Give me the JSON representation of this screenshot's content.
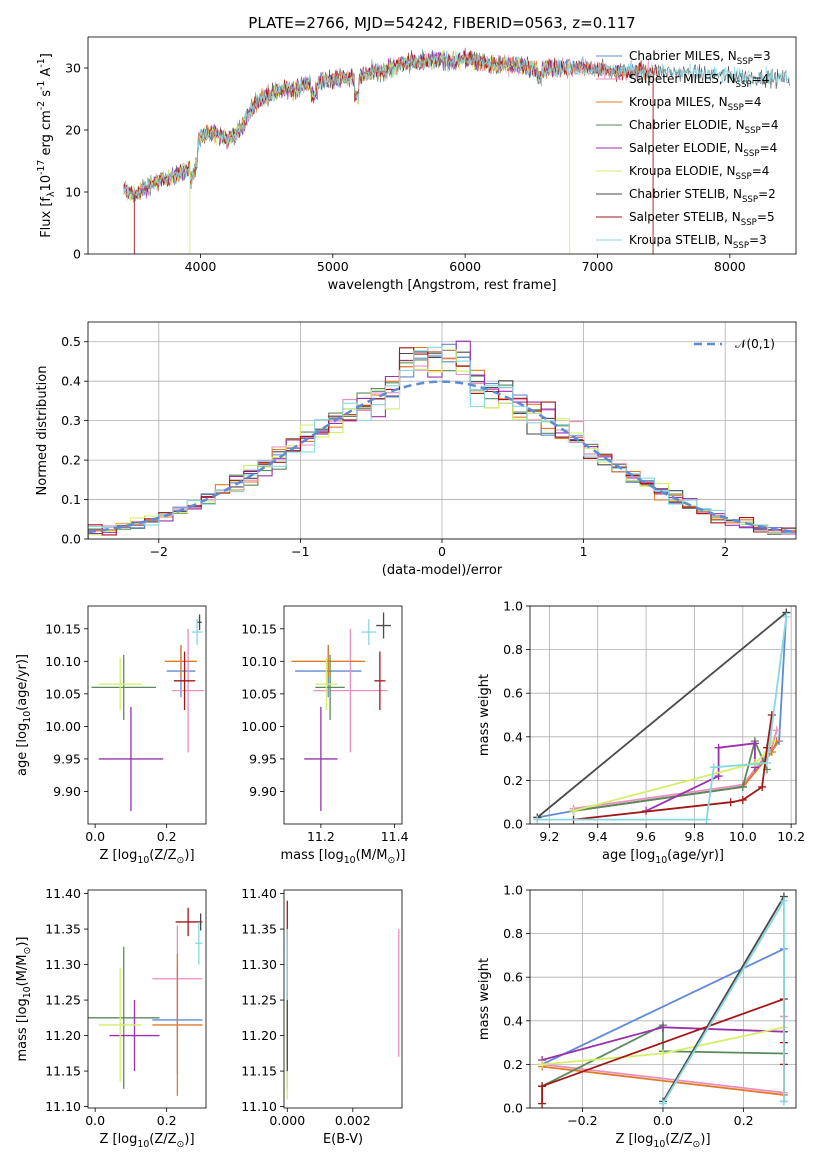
{
  "colors": {
    "chabrier_miles": "#5f8ad6",
    "salpeter_miles": "#e88fc0",
    "kroupa_miles": "#e07b2a",
    "chabrier_elodie": "#5a8a5c",
    "salpeter_elodie": "#9a32ad",
    "kroupa_elodie": "#d4ef6a",
    "chabrier_stelib": "#4a4a4a",
    "salpeter_stelib": "#a31717",
    "kroupa_stelib": "#86d8e3"
  },
  "chart_data": [
    {
      "id": "spectrum",
      "type": "line",
      "title": "PLATE=2766, MJD=54242, FIBERID=0563, z=0.117",
      "xlabel": "wavelength [Angstrom, rest frame]",
      "ylabel": "Flux [f$_\\lambda$10$^{-17}$ erg cm$^{-2}$ s$^{-1}$ A$^{-1}$]",
      "xlim": [
        3150,
        8500
      ],
      "ylim": [
        0,
        35
      ],
      "xticks": [
        "4000",
        "5000",
        "6000",
        "7000",
        "8000"
      ],
      "yticks": [
        "0",
        "10",
        "20",
        "30"
      ],
      "grid": false,
      "legend": "top-right",
      "spectrum_envelope": {
        "x": [
          3420,
          3500,
          3600,
          3700,
          3800,
          3900,
          4000,
          4100,
          4200,
          4300,
          4400,
          4500,
          4600,
          4700,
          4800,
          4900,
          5000,
          5100,
          5200,
          5300,
          5400,
          5500,
          5600,
          5700,
          5800,
          5900,
          6000,
          6100,
          6200,
          6300,
          6400,
          6500,
          6600,
          6700,
          6800,
          6900,
          7000,
          7100,
          7200,
          7300,
          7400
        ],
        "y": [
          10.5,
          9.5,
          11,
          12,
          12.5,
          13.5,
          19,
          19.5,
          18.5,
          20,
          24,
          25.5,
          26.5,
          26.5,
          27.5,
          28,
          28,
          28.5,
          28.5,
          29.5,
          29.5,
          30.5,
          31,
          31,
          31.5,
          31,
          31.5,
          31,
          30.5,
          30.5,
          30.5,
          30,
          30,
          30,
          30,
          30,
          30,
          29.5,
          29.5,
          29.5,
          29.5
        ]
      },
      "series": [
        {
          "name": "Chabrier MILES, N$_{SSP}$=3",
          "xmax": 7400
        },
        {
          "name": "Salpeter MILES, N$_{SSP}$=4",
          "xmax": 7400
        },
        {
          "name": "Kroupa MILES, N$_{SSP}$=4",
          "xmax": 7400
        },
        {
          "name": "Chabrier ELODIE, N$_{SSP}$=4",
          "xmax": 6800
        },
        {
          "name": "Salpeter ELODIE, N$_{SSP}$=4",
          "xmax": 6800
        },
        {
          "name": "Kroupa ELODIE, N$_{SSP}$=4",
          "xmax": 6800
        },
        {
          "name": "Chabrier STELIB, N$_{SSP}$=2",
          "xmax": 8450
        },
        {
          "name": "Salpeter STELIB, N$_{SSP}$=5",
          "xmax": 7450
        },
        {
          "name": "Kroupa STELIB, N$_{SSP}$=3",
          "xmax": 8450
        }
      ]
    },
    {
      "id": "residuals",
      "type": "histogram",
      "xlabel": "(data-model)/error",
      "ylabel": "Normed distribution",
      "xlim": [
        -2.5,
        2.5
      ],
      "ylim": [
        0,
        0.55
      ],
      "xticks": [
        "−2",
        "−1",
        "0",
        "1",
        "2"
      ],
      "yticks": [
        "0.0",
        "0.1",
        "0.2",
        "0.3",
        "0.4",
        "0.5"
      ],
      "grid": true,
      "legend": "top-right",
      "legend_label": "$\\mathcal{N}(0,1)$",
      "bin_width": 0.1
    },
    {
      "id": "age_vs_Z",
      "type": "scatter",
      "xlabel": "Z [log$_{10}$(Z/Z$_\\odot$)]",
      "ylabel": "age  [log$_{10}$(age/yr)]",
      "xlim": [
        -0.02,
        0.31
      ],
      "ylim": [
        9.85,
        10.185
      ],
      "xticks": [
        "0.0",
        "0.2"
      ],
      "yticks": [
        "9.90",
        "9.95",
        "10.00",
        "10.05",
        "10.10",
        "10.15"
      ],
      "points": [
        {
          "x": 0.24,
          "y": 10.085,
          "xerr": 0.04,
          "yerr": 0.04
        },
        {
          "x": 0.26,
          "y": 10.055,
          "xerr": 0.045,
          "yerr": 0.095
        },
        {
          "x": 0.24,
          "y": 10.1,
          "xerr": 0.045,
          "yerr": 0.025
        },
        {
          "x": 0.08,
          "y": 10.06,
          "xerr": 0.09,
          "yerr": 0.05
        },
        {
          "x": 0.1,
          "y": 9.95,
          "xerr": 0.09,
          "yerr": 0.08
        },
        {
          "x": 0.07,
          "y": 10.065,
          "xerr": 0.06,
          "yerr": 0.04
        },
        {
          "x": 0.292,
          "y": 10.16,
          "xerr": 0.006,
          "yerr": 0.012
        },
        {
          "x": 0.25,
          "y": 10.07,
          "xerr": 0.03,
          "yerr": 0.045
        },
        {
          "x": 0.285,
          "y": 10.145,
          "xerr": 0.015,
          "yerr": 0.02
        }
      ]
    },
    {
      "id": "age_vs_mass",
      "type": "scatter",
      "xlabel": "mass [log$_{10}$(M/M$_\\odot$)]",
      "ylabel": "",
      "xlim": [
        11.1,
        11.42
      ],
      "ylim": [
        9.85,
        10.185
      ],
      "xticks": [
        "11.2",
        "11.4"
      ],
      "yticks": [
        "9.90",
        "9.95",
        "10.00",
        "10.05",
        "10.10",
        "10.15"
      ],
      "points": [
        {
          "x": 11.22,
          "y": 10.085,
          "xerr": 0.09,
          "yerr": 0.04
        },
        {
          "x": 11.28,
          "y": 10.055,
          "xerr": 0.1,
          "yerr": 0.095
        },
        {
          "x": 11.22,
          "y": 10.1,
          "xerr": 0.1,
          "yerr": 0.025
        },
        {
          "x": 11.225,
          "y": 10.06,
          "xerr": 0.04,
          "yerr": 0.05
        },
        {
          "x": 11.2,
          "y": 9.95,
          "xerr": 0.045,
          "yerr": 0.08
        },
        {
          "x": 11.215,
          "y": 10.065,
          "xerr": 0.03,
          "yerr": 0.04
        },
        {
          "x": 11.37,
          "y": 10.155,
          "xerr": 0.02,
          "yerr": 0.02
        },
        {
          "x": 11.36,
          "y": 10.07,
          "xerr": 0.015,
          "yerr": 0.045
        },
        {
          "x": 11.33,
          "y": 10.145,
          "xerr": 0.02,
          "yerr": 0.02
        }
      ]
    },
    {
      "id": "weight_vs_age",
      "type": "line",
      "xlabel": "age  [log$_{10}$(age/yr)]",
      "ylabel": "mass weight",
      "xlim": [
        9.12,
        10.22
      ],
      "ylim": [
        0,
        1
      ],
      "xticks": [
        "9.2",
        "9.4",
        "9.6",
        "9.8",
        "10.0",
        "10.2"
      ],
      "yticks": [
        "0.0",
        "0.2",
        "0.4",
        "0.6",
        "0.8",
        "1.0"
      ],
      "grid": true,
      "series": [
        {
          "x": [
            9.15,
            9.3,
            10.0,
            10.15,
            10.18
          ],
          "y": [
            0.03,
            0.06,
            0.17,
            0.38,
            0.97
          ]
        },
        {
          "x": [
            9.3,
            10.0,
            10.12,
            10.14
          ],
          "y": [
            0.07,
            0.18,
            0.35,
            0.43
          ]
        },
        {
          "x": [
            9.3,
            10.0,
            10.12,
            10.14
          ],
          "y": [
            0.06,
            0.17,
            0.33,
            0.38
          ]
        },
        {
          "x": [
            9.3,
            10.0,
            10.05,
            10.1
          ],
          "y": [
            0.06,
            0.17,
            0.38,
            0.25
          ]
        },
        {
          "x": [
            9.6,
            9.9,
            9.9,
            10.05,
            10.05
          ],
          "y": [
            0.06,
            0.22,
            0.35,
            0.37,
            0.26
          ]
        },
        {
          "x": [
            9.3,
            10.05,
            10.1,
            10.12
          ],
          "y": [
            0.06,
            0.28,
            0.33,
            0.38
          ]
        },
        {
          "x": [
            9.15,
            10.18
          ],
          "y": [
            0.03,
            0.97
          ]
        },
        {
          "x": [
            9.3,
            9.95,
            10.0,
            10.08,
            10.1,
            10.12
          ],
          "y": [
            0.02,
            0.1,
            0.11,
            0.17,
            0.35,
            0.5
          ]
        },
        {
          "x": [
            9.15,
            9.85,
            9.88,
            10.1,
            10.18
          ],
          "y": [
            0.02,
            0.02,
            0.26,
            0.28,
            0.95
          ]
        }
      ]
    },
    {
      "id": "mass_vs_Z",
      "type": "scatter",
      "xlabel": "Z [log$_{10}$(Z/Z$_\\odot$)]",
      "ylabel": "mass [log$_{10}$(M/M$_\\odot$)]",
      "xlim": [
        -0.02,
        0.31
      ],
      "ylim": [
        11.098,
        11.405
      ],
      "xticks": [
        "0.0",
        "0.2"
      ],
      "yticks": [
        "11.10",
        "11.15",
        "11.20",
        "11.25",
        "11.30",
        "11.35",
        "11.40"
      ],
      "points": [
        {
          "x": 0.23,
          "y": 11.222,
          "xerr": 0.07,
          "yerr": 0.075
        },
        {
          "x": 0.23,
          "y": 11.28,
          "xerr": 0.07,
          "yerr": 0.075
        },
        {
          "x": 0.23,
          "y": 11.215,
          "xerr": 0.07,
          "yerr": 0.1
        },
        {
          "x": 0.08,
          "y": 11.225,
          "xerr": 0.1,
          "yerr": 0.1
        },
        {
          "x": 0.11,
          "y": 11.2,
          "xerr": 0.07,
          "yerr": 0.05
        },
        {
          "x": 0.07,
          "y": 11.215,
          "xerr": 0.06,
          "yerr": 0.08
        },
        {
          "x": 0.295,
          "y": 11.36,
          "xerr": 0.005,
          "yerr": 0.012
        },
        {
          "x": 0.26,
          "y": 11.36,
          "xerr": 0.035,
          "yerr": 0.02
        },
        {
          "x": 0.29,
          "y": 11.33,
          "xerr": 0.01,
          "yerr": 0.03
        }
      ]
    },
    {
      "id": "mass_vs_ebv",
      "type": "scatter",
      "xlabel": "E(B-V)",
      "ylabel": "",
      "xlim": [
        -0.0001,
        0.0035
      ],
      "ylim": [
        11.098,
        11.405
      ],
      "xticks": [
        "0.000",
        "0.002"
      ],
      "yticks": [
        "11.10",
        "11.15",
        "11.20",
        "11.25",
        "11.30",
        "11.35",
        "11.40"
      ],
      "points": [
        {
          "x": 0.0,
          "y": 11.222,
          "yerr": 0.075
        },
        {
          "x": 0.0034,
          "y": 11.26,
          "yerr": 0.09
        },
        {
          "x": 0.0,
          "y": 11.215,
          "yerr": 0.06
        },
        {
          "x": 0.0,
          "y": 11.225,
          "yerr": 0.1
        },
        {
          "x": 0.0,
          "y": 11.2,
          "yerr": 0.05
        },
        {
          "x": 0.0,
          "y": 11.18,
          "yerr": 0.07
        },
        {
          "x": 0.0,
          "y": 11.25,
          "yerr": 0.1
        },
        {
          "x": 0.0,
          "y": 11.36,
          "yerr": 0.03
        },
        {
          "x": 0.0,
          "y": 11.3,
          "yerr": 0.05
        }
      ]
    },
    {
      "id": "weight_vs_Z",
      "type": "line",
      "xlabel": "Z [log$_{10}$(Z/Z$_\\odot$)]",
      "ylabel": "mass weight",
      "xlim": [
        -0.33,
        0.33
      ],
      "ylim": [
        0,
        1
      ],
      "xticks": [
        "−0.2",
        "0.0",
        "0.2"
      ],
      "yticks": [
        "0.0",
        "0.2",
        "0.4",
        "0.6",
        "0.8",
        "1.0"
      ],
      "grid": true,
      "series": [
        {
          "x": [
            -0.3,
            0.3,
            0.3
          ],
          "y": [
            0.2,
            0.73,
            0.03
          ]
        },
        {
          "x": [
            -0.3,
            0.3,
            0.3
          ],
          "y": [
            0.2,
            0.07,
            0.42
          ]
        },
        {
          "x": [
            -0.3,
            0.3,
            0.3
          ],
          "y": [
            0.19,
            0.06,
            0.35
          ]
        },
        {
          "x": [
            -0.3,
            0.0,
            0.0,
            0.3
          ],
          "y": [
            0.1,
            0.38,
            0.26,
            0.25
          ]
        },
        {
          "x": [
            -0.3,
            0.0,
            0.3
          ],
          "y": [
            0.22,
            0.37,
            0.35
          ]
        },
        {
          "x": [
            -0.3,
            0.0,
            0.3
          ],
          "y": [
            0.2,
            0.25,
            0.37
          ]
        },
        {
          "x": [
            0.0,
            0.3
          ],
          "y": [
            0.03,
            0.97
          ]
        },
        {
          "x": [
            -0.3,
            -0.3,
            0.3,
            0.3,
            0.3
          ],
          "y": [
            0.02,
            0.1,
            0.5,
            0.2,
            0.3
          ]
        },
        {
          "x": [
            0.0,
            0.3,
            0.3
          ],
          "y": [
            0.02,
            0.95,
            0.03
          ]
        }
      ]
    }
  ]
}
